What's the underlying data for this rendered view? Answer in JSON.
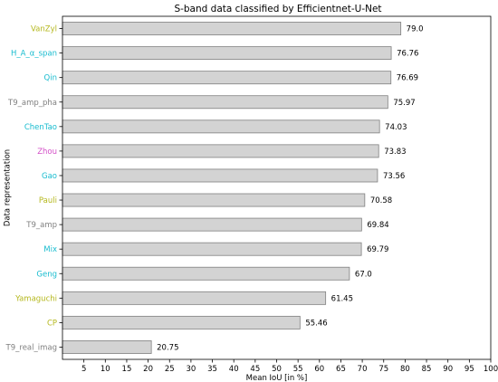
{
  "chart_data": {
    "type": "bar",
    "orientation": "horizontal",
    "title": "S-band data classified by Efficientnet-U-Net",
    "xlabel": "Mean IoU [in %]",
    "ylabel": "Data representation",
    "xlim": [
      0,
      100
    ],
    "xticks": [
      5,
      10,
      15,
      20,
      25,
      30,
      35,
      40,
      45,
      50,
      55,
      60,
      65,
      70,
      75,
      80,
      85,
      90,
      95,
      100
    ],
    "grid": false,
    "bar_color": "#d3d3d3",
    "bar_edge_color": "#808080",
    "categories": [
      {
        "label": "VanZyl",
        "value": 79.0,
        "value_label": "79.0",
        "color": "#b5b81e"
      },
      {
        "label": "H_A_α_span",
        "value": 76.76,
        "value_label": "76.76",
        "color": "#18bccf"
      },
      {
        "label": "Qin",
        "value": 76.69,
        "value_label": "76.69",
        "color": "#18bccf"
      },
      {
        "label": "T9_amp_pha",
        "value": 75.97,
        "value_label": "75.97",
        "color": "#7f7f7f"
      },
      {
        "label": "ChenTao",
        "value": 74.03,
        "value_label": "74.03",
        "color": "#18bccf"
      },
      {
        "label": "Zhou",
        "value": 73.83,
        "value_label": "73.83",
        "color": "#d450c8"
      },
      {
        "label": "Gao",
        "value": 73.56,
        "value_label": "73.56",
        "color": "#18bccf"
      },
      {
        "label": "Pauli",
        "value": 70.58,
        "value_label": "70.58",
        "color": "#b5b81e"
      },
      {
        "label": "T9_amp",
        "value": 69.84,
        "value_label": "69.84",
        "color": "#7f7f7f"
      },
      {
        "label": "Mix",
        "value": 69.79,
        "value_label": "69.79",
        "color": "#18bccf"
      },
      {
        "label": "Geng",
        "value": 67.0,
        "value_label": "67.0",
        "color": "#18bccf"
      },
      {
        "label": "Yamaguchi",
        "value": 61.45,
        "value_label": "61.45",
        "color": "#b5b81e"
      },
      {
        "label": "CP",
        "value": 55.46,
        "value_label": "55.46",
        "color": "#b5b81e"
      },
      {
        "label": "T9_real_imag",
        "value": 20.75,
        "value_label": "20.75",
        "color": "#7f7f7f"
      }
    ]
  }
}
